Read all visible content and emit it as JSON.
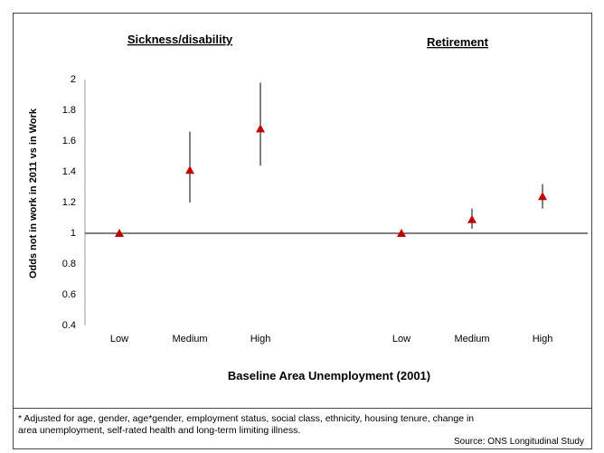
{
  "chart_data": {
    "type": "scatter",
    "panels": [
      {
        "title": "Sickness/disability",
        "categories": [
          "Low",
          "Medium",
          "High"
        ]
      },
      {
        "title": "Retirement",
        "categories": [
          "Low",
          "Medium",
          "High"
        ]
      }
    ],
    "series": [
      {
        "panel": "Sickness/disability",
        "points": [
          {
            "x": "Low",
            "y": 1.0,
            "lower": 1.0,
            "upper": 1.0
          },
          {
            "x": "Medium",
            "y": 1.41,
            "lower": 1.2,
            "upper": 1.66
          },
          {
            "x": "High",
            "y": 1.68,
            "lower": 1.44,
            "upper": 1.98
          }
        ]
      },
      {
        "panel": "Retirement",
        "points": [
          {
            "x": "Low",
            "y": 1.0,
            "lower": 1.0,
            "upper": 1.0
          },
          {
            "x": "Medium",
            "y": 1.09,
            "lower": 1.03,
            "upper": 1.16
          },
          {
            "x": "High",
            "y": 1.24,
            "lower": 1.16,
            "upper": 1.32
          }
        ]
      }
    ],
    "ylabel": "Odds not in work in 2011 vs in Work",
    "xlabel": "Baseline Area Unemployment (2001)",
    "ylim": [
      0.4,
      2.0
    ],
    "yticks": [
      "2",
      "1.8",
      "1.6",
      "1.4",
      "1.2",
      "1",
      "0.8",
      "0.6",
      "0.4"
    ],
    "reference_line": 1.0,
    "marker_color": "#c00000",
    "grid": false
  },
  "footnote": {
    "line1": "* Adjusted for age, gender, age*gender, employment status, social class, ethnicity, housing tenure, change in",
    "line2": "area unemployment, self-rated health and long-term limiting illness."
  },
  "source": "Source: ONS Longitudinal Study"
}
